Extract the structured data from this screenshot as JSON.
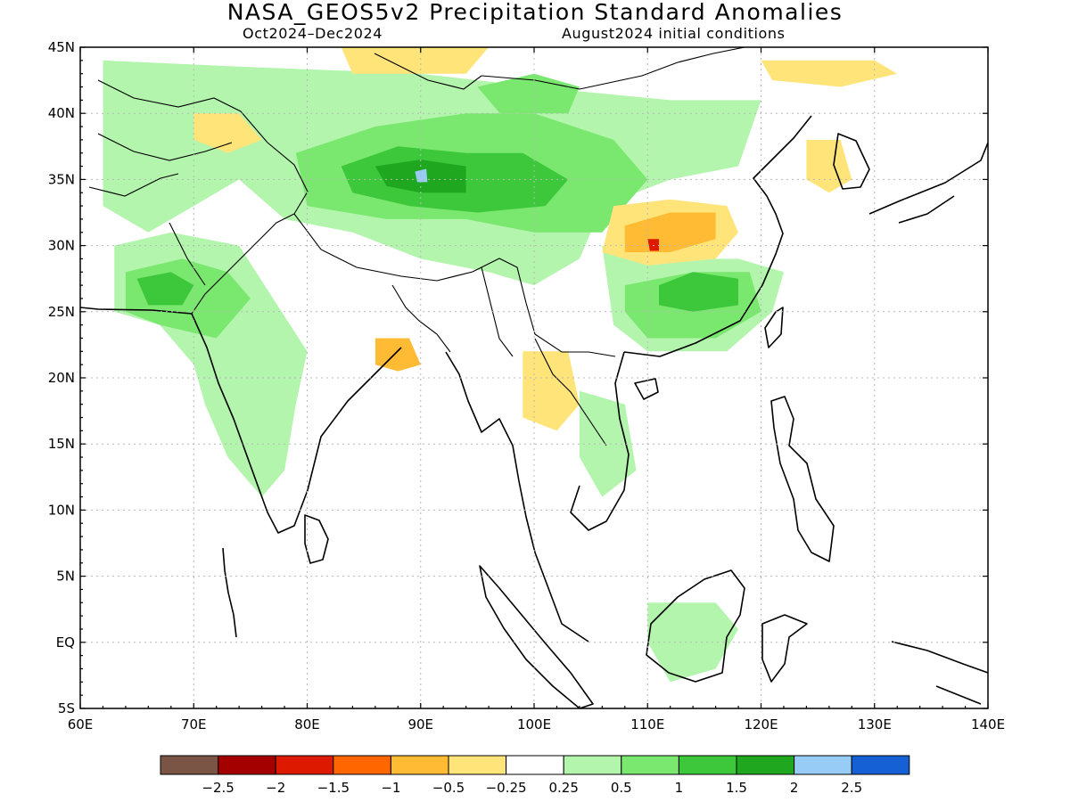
{
  "title": "NASA_GEOS5v2 Precipitation Standard Anomalies",
  "subtitle_left": "Oct2024–Dec2024",
  "subtitle_right": "August2024 initial conditions",
  "lat_labels": [
    "45N",
    "40N",
    "35N",
    "30N",
    "25N",
    "20N",
    "15N",
    "10N",
    "5N",
    "EQ",
    "5S"
  ],
  "lon_labels": [
    "60E",
    "70E",
    "80E",
    "90E",
    "100E",
    "110E",
    "120E",
    "130E",
    "140E"
  ],
  "colorbar": {
    "colors": [
      "#7a5545",
      "#a50000",
      "#dd1a00",
      "#ff6600",
      "#ffbb33",
      "#ffe47a",
      "#ffffff",
      "#b3f5ad",
      "#7ae76f",
      "#3cc83a",
      "#1fa71f",
      "#96ccf6",
      "#1560d4"
    ],
    "labels": [
      "−2.5",
      "−2",
      "−1.5",
      "−1",
      "−0.5",
      "−0.25",
      "0.25",
      "0.5",
      "1",
      "1.5",
      "2",
      "2.5"
    ]
  },
  "regions": [
    {
      "color": "#b3f5ad",
      "points": [
        [
          62,
          44
        ],
        [
          75,
          43.5
        ],
        [
          90,
          43
        ],
        [
          100,
          42
        ],
        [
          112,
          41
        ],
        [
          120,
          41
        ],
        [
          118,
          36
        ],
        [
          112,
          35
        ],
        [
          106,
          33
        ],
        [
          104,
          29
        ],
        [
          100,
          27
        ],
        [
          96,
          28
        ],
        [
          90,
          29
        ],
        [
          84,
          31
        ],
        [
          78,
          32
        ],
        [
          74,
          35
        ],
        [
          70,
          33
        ],
        [
          66,
          31
        ],
        [
          62,
          33
        ]
      ]
    },
    {
      "color": "#b3f5ad",
      "points": [
        [
          63,
          30
        ],
        [
          68,
          31
        ],
        [
          74,
          30
        ],
        [
          77,
          26
        ],
        [
          80,
          22
        ],
        [
          79,
          18
        ],
        [
          78,
          13
        ],
        [
          76,
          11
        ],
        [
          73,
          14
        ],
        [
          71,
          18
        ],
        [
          70,
          21
        ],
        [
          67,
          24
        ],
        [
          63,
          25
        ]
      ]
    },
    {
      "color": "#b3f5ad",
      "points": [
        [
          106,
          30
        ],
        [
          112,
          29
        ],
        [
          118,
          29
        ],
        [
          122,
          28
        ],
        [
          121,
          25
        ],
        [
          117,
          22
        ],
        [
          110,
          22
        ],
        [
          107,
          24
        ]
      ]
    },
    {
      "color": "#b3f5ad",
      "points": [
        [
          104,
          19
        ],
        [
          108,
          18
        ],
        [
          109,
          13
        ],
        [
          106,
          11
        ],
        [
          104,
          14
        ]
      ]
    },
    {
      "color": "#b3f5ad",
      "points": [
        [
          110,
          3
        ],
        [
          116,
          3
        ],
        [
          118,
          1
        ],
        [
          116,
          -2
        ],
        [
          112,
          -3
        ],
        [
          110,
          0
        ]
      ]
    },
    {
      "color": "#7ae76f",
      "points": [
        [
          79,
          37
        ],
        [
          86,
          39
        ],
        [
          94,
          40
        ],
        [
          100,
          40
        ],
        [
          107,
          38
        ],
        [
          110,
          35
        ],
        [
          106,
          31
        ],
        [
          100,
          31
        ],
        [
          94,
          32
        ],
        [
          87,
          32
        ],
        [
          80,
          33
        ]
      ]
    },
    {
      "color": "#7ae76f",
      "points": [
        [
          64,
          28
        ],
        [
          69,
          29
        ],
        [
          73,
          28
        ],
        [
          75,
          26
        ],
        [
          72,
          23
        ],
        [
          67,
          24
        ],
        [
          64,
          25
        ]
      ]
    },
    {
      "color": "#7ae76f",
      "points": [
        [
          108,
          27
        ],
        [
          114,
          28
        ],
        [
          119,
          28
        ],
        [
          120,
          25
        ],
        [
          116,
          23
        ],
        [
          110,
          23
        ],
        [
          108,
          25
        ]
      ]
    },
    {
      "color": "#7ae76f",
      "points": [
        [
          95,
          42
        ],
        [
          100,
          43
        ],
        [
          104,
          42
        ],
        [
          103,
          40
        ],
        [
          97,
          40
        ]
      ]
    },
    {
      "color": "#3cc83a",
      "points": [
        [
          83,
          36
        ],
        [
          88,
          37.5
        ],
        [
          94,
          37
        ],
        [
          99,
          37
        ],
        [
          103,
          35
        ],
        [
          101,
          33
        ],
        [
          95,
          32.5
        ],
        [
          89,
          33
        ],
        [
          84,
          34
        ]
      ]
    },
    {
      "color": "#3cc83a",
      "points": [
        [
          111,
          27
        ],
        [
          114,
          28
        ],
        [
          118,
          27.5
        ],
        [
          118,
          25.5
        ],
        [
          114,
          25
        ],
        [
          111,
          25.5
        ]
      ]
    },
    {
      "color": "#3cc83a",
      "points": [
        [
          65,
          27.5
        ],
        [
          68,
          28
        ],
        [
          70,
          27
        ],
        [
          69,
          25.5
        ],
        [
          66,
          25.5
        ]
      ]
    },
    {
      "color": "#1fa71f",
      "points": [
        [
          86,
          36
        ],
        [
          90,
          36.5
        ],
        [
          94,
          36
        ],
        [
          94,
          34
        ],
        [
          90,
          34
        ],
        [
          87,
          34.5
        ]
      ]
    },
    {
      "color": "#96ccf6",
      "points": [
        [
          89.5,
          35.6
        ],
        [
          90.5,
          35.8
        ],
        [
          90.6,
          34.8
        ],
        [
          89.7,
          34.8
        ]
      ]
    },
    {
      "color": "#ffe47a",
      "points": [
        [
          107,
          33
        ],
        [
          112,
          33.5
        ],
        [
          117,
          33
        ],
        [
          118,
          31
        ],
        [
          116,
          29
        ],
        [
          110,
          28.5
        ],
        [
          106,
          29.5
        ]
      ]
    },
    {
      "color": "#ffe47a",
      "points": [
        [
          70,
          40
        ],
        [
          74,
          40
        ],
        [
          76,
          38
        ],
        [
          73,
          37
        ],
        [
          70,
          38
        ]
      ]
    },
    {
      "color": "#ffe47a",
      "points": [
        [
          83,
          45
        ],
        [
          90,
          45
        ],
        [
          96,
          45
        ],
        [
          94,
          43
        ],
        [
          88,
          43
        ],
        [
          84,
          43
        ]
      ]
    },
    {
      "color": "#ffe47a",
      "points": [
        [
          124,
          38
        ],
        [
          127,
          38
        ],
        [
          128,
          35
        ],
        [
          126,
          34
        ],
        [
          124,
          35
        ]
      ]
    },
    {
      "color": "#ffe47a",
      "points": [
        [
          120,
          44
        ],
        [
          130,
          44
        ],
        [
          132,
          43
        ],
        [
          127,
          42
        ],
        [
          121,
          42.5
        ]
      ]
    },
    {
      "color": "#ffe47a",
      "points": [
        [
          99,
          22
        ],
        [
          103,
          22
        ],
        [
          104,
          18
        ],
        [
          102,
          16
        ],
        [
          99,
          17
        ]
      ]
    },
    {
      "color": "#ffbb33",
      "points": [
        [
          108,
          31.5
        ],
        [
          112,
          32.5
        ],
        [
          116,
          32.5
        ],
        [
          116,
          30.5
        ],
        [
          112,
          29.5
        ],
        [
          108,
          29.5
        ]
      ]
    },
    {
      "color": "#ffbb33",
      "points": [
        [
          86,
          23
        ],
        [
          89,
          23
        ],
        [
          90,
          21
        ],
        [
          88,
          20.5
        ],
        [
          86,
          21
        ]
      ]
    },
    {
      "color": "#dd1a00",
      "points": [
        [
          110,
          30.5
        ],
        [
          111,
          30.5
        ],
        [
          111,
          29.6
        ],
        [
          110.2,
          29.6
        ]
      ]
    }
  ]
}
